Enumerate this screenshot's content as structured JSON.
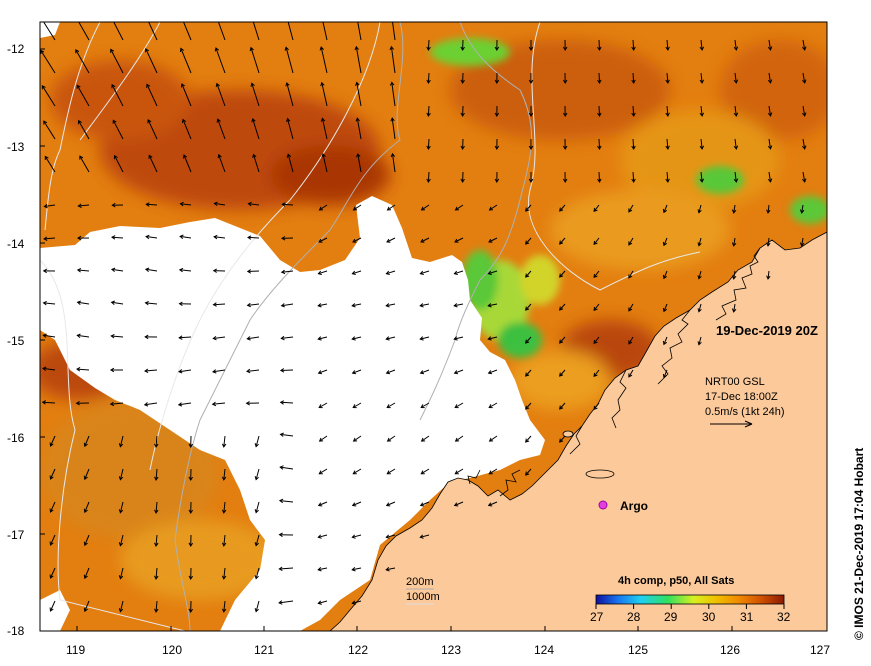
{
  "map": {
    "date_label": "19-Dec-2019 20Z",
    "currents_source": "NRT00 GSL",
    "currents_time": "17-Dec 18:00Z",
    "scale_label": "0.5m/s (1kt 24h)",
    "argo_label": "Argo",
    "contour_200m_label": "200m",
    "contour_1000m_label": "1000m",
    "credit": "© IMOS 21-Dec-2019 17:04 Hobart",
    "lat_ticks": [
      "-12",
      "-13",
      "-14",
      "-15",
      "-16",
      "-17",
      "-18"
    ],
    "lon_ticks": [
      "119",
      "120",
      "121",
      "122",
      "123",
      "124",
      "125",
      "126",
      "127"
    ],
    "extent": {
      "lon": [
        118.63,
        127
      ],
      "lat": [
        -18,
        -11.75
      ]
    },
    "colors": {
      "land": "#fbc99a",
      "ocean_base": "#e07a0c",
      "no_data": "#ffffff",
      "argo": "#e040e0"
    }
  },
  "colorbar": {
    "title": "4h comp, p50, All Sats",
    "ticks": [
      "27",
      "28",
      "29",
      "30",
      "31",
      "32"
    ],
    "range": [
      27,
      32
    ],
    "units_note": ""
  }
}
